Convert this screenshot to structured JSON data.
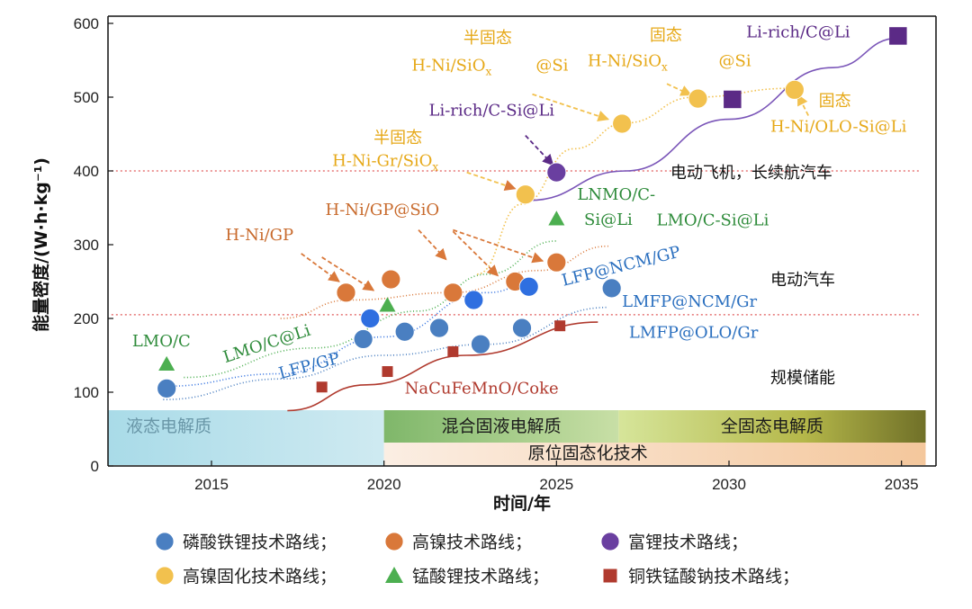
{
  "chart_data": {
    "type": "scatter",
    "xlabel": "时间/年",
    "ylabel": "能量密度/(W·h·kg⁻¹)",
    "xlim": [
      2012,
      2036
    ],
    "ylim": [
      0,
      600
    ],
    "xticks": [
      2015,
      2020,
      2025,
      2030,
      2035
    ],
    "yticks": [
      0,
      100,
      200,
      300,
      400,
      500,
      600
    ],
    "reference_lines": [
      400,
      205
    ],
    "application_labels": [
      {
        "text": "电动飞机，长续航汽车",
        "x": 2028.3,
        "y": 390
      },
      {
        "text": "电动汽车",
        "x": 2031.2,
        "y": 245
      },
      {
        "text": "规模储能",
        "x": 2031.2,
        "y": 112
      }
    ],
    "electrolyte_bands": [
      {
        "text": "液态电解质",
        "start": 2012,
        "end": 2020
      },
      {
        "text": "混合固液电解质",
        "start": 2020,
        "end": 2026.8
      },
      {
        "text": "全固态电解质",
        "start": 2026.8,
        "end": 2035.7
      },
      {
        "text": "原位固态化技术",
        "start": 2020,
        "end": 2035.7
      }
    ],
    "series": [
      {
        "name": "磷酸铁锂技术路线",
        "marker": "circle",
        "color": "#4a7fc1",
        "points": [
          [
            2013.7,
            105
          ],
          [
            2019.4,
            172
          ],
          [
            2020.6,
            182
          ],
          [
            2021.6,
            187
          ],
          [
            2022.8,
            165
          ],
          [
            2024.0,
            187
          ],
          [
            2026.6,
            241
          ]
        ]
      },
      {
        "name": "高镍技术路线",
        "marker": "circle",
        "color": "#d9783a",
        "points": [
          [
            2018.9,
            235
          ],
          [
            2020.2,
            253
          ],
          [
            2022.0,
            235
          ],
          [
            2023.8,
            250
          ],
          [
            2025.0,
            276
          ]
        ]
      },
      {
        "name": "富锂技术路线",
        "marker": "circle",
        "color": "#6a3fa0",
        "points": [
          [
            2025.0,
            398
          ]
        ]
      },
      {
        "name": "高镍固化技术路线",
        "marker": "circle",
        "color": "#f2c14e",
        "points": [
          [
            2024.1,
            368
          ],
          [
            2026.9,
            464
          ],
          [
            2029.1,
            498
          ],
          [
            2031.9,
            510
          ]
        ]
      },
      {
        "name": "锰酸锂技术路线",
        "marker": "triangle",
        "color": "#4caf50",
        "points": [
          [
            2013.7,
            138
          ],
          [
            2020.1,
            218
          ],
          [
            2025.0,
            335
          ]
        ]
      },
      {
        "name": "铜铁锰酸钠技术路线",
        "marker": "square",
        "color": "#b03a2e",
        "points": [
          [
            2018.2,
            107
          ],
          [
            2020.1,
            128
          ],
          [
            2022.0,
            155
          ],
          [
            2025.1,
            190
          ]
        ]
      },
      {
        "name": "",
        "marker": "circle",
        "color": "#2f6fe0",
        "points": [
          [
            2019.6,
            200
          ],
          [
            2022.6,
            225
          ],
          [
            2024.2,
            243
          ]
        ]
      },
      {
        "name": "",
        "marker": "square",
        "color": "#5b2a86",
        "points": [
          [
            2030.1,
            497
          ],
          [
            2034.9,
            583
          ]
        ]
      }
    ],
    "annotations": [
      {
        "text": "LMO/C",
        "x": 2012.7,
        "y": 162,
        "color": "#2e8b3a"
      },
      {
        "text": "LMO/C@Li",
        "x": 2015.4,
        "y": 140,
        "color": "#2e8b3a",
        "rotate": -18
      },
      {
        "text": "LFP/GP",
        "x": 2017.0,
        "y": 118,
        "color": "#2a6fbf",
        "rotate": -15
      },
      {
        "text": "NaCuFeMnO/Coke",
        "x": 2020.6,
        "y": 98,
        "color": "#b03a2e"
      },
      {
        "text": "LMFP@NCM/Gr",
        "x": 2026.9,
        "y": 216,
        "color": "#2a6fbf"
      },
      {
        "text": "LMFP@OLO/Gr",
        "x": 2027.1,
        "y": 174,
        "color": "#2a6fbf"
      },
      {
        "text": "LFP@NCM/GP",
        "x": 2025.2,
        "y": 244,
        "color": "#2a6fbf",
        "rotate": -14
      },
      {
        "text": "LMO/C-Si@Li",
        "x": 2027.9,
        "y": 326,
        "color": "#2e8b3a"
      },
      {
        "text": "LNMO/C-",
        "x": 2025.6,
        "y": 361,
        "color": "#2e8b3a"
      },
      {
        "text": "Si@Li",
        "x": 2025.8,
        "y": 327,
        "color": "#2e8b3a"
      },
      {
        "text": "H-Ni/GP",
        "x": 2015.4,
        "y": 306,
        "color": "#c86a2c"
      },
      {
        "text": "H-Ni/GP@SiO",
        "x": 2018.3,
        "y": 340,
        "color": "#c86a2c"
      },
      {
        "text": "半固态",
        "x": 2019.7,
        "y": 438,
        "color": "#e6a817"
      },
      {
        "text": "H-Ni-Gr/SiO",
        "x": 2018.5,
        "y": 407,
        "color": "#e6a817"
      },
      {
        "text": "Li-rich/C-Si@Li",
        "x": 2021.3,
        "y": 475,
        "color": "#5b2a86"
      },
      {
        "text": "半固态",
        "x": 2022.3,
        "y": 573,
        "color": "#e6a817"
      },
      {
        "text": "H-Ni/SiO",
        "x": 2020.8,
        "y": 536,
        "color": "#e6a817"
      },
      {
        "text": "@Si",
        "x": 2024.4,
        "y": 536,
        "color": "#e6a817"
      },
      {
        "text": "固态",
        "x": 2027.7,
        "y": 577,
        "color": "#e6a817"
      },
      {
        "text": "H-Ni/SiO",
        "x": 2025.9,
        "y": 542,
        "color": "#e6a817"
      },
      {
        "text": "@Si",
        "x": 2029.7,
        "y": 542,
        "color": "#e6a817"
      },
      {
        "text": "Li-rich/C@Li",
        "x": 2030.5,
        "y": 581,
        "color": "#5b2a86"
      },
      {
        "text": "固态",
        "x": 2032.6,
        "y": 488,
        "color": "#e6a817"
      },
      {
        "text": "H-Ni/OLO-Si@Li",
        "x": 2031.2,
        "y": 453,
        "color": "#e6a817"
      }
    ],
    "subscript": "x"
  },
  "legend": [
    {
      "label": "磷酸铁锂技术路线；",
      "marker": "circle",
      "color": "#4a7fc1"
    },
    {
      "label": "高镍技术路线；",
      "marker": "circle",
      "color": "#d9783a"
    },
    {
      "label": "富锂技术路线；",
      "marker": "circle",
      "color": "#6a3fa0"
    },
    {
      "label": "高镍固化技术路线；",
      "marker": "circle",
      "color": "#f2c14e"
    },
    {
      "label": "锰酸锂技术路线；",
      "marker": "triangle",
      "color": "#4caf50"
    },
    {
      "label": "铜铁锰酸钠技术路线；",
      "marker": "square",
      "color": "#b03a2e"
    }
  ]
}
